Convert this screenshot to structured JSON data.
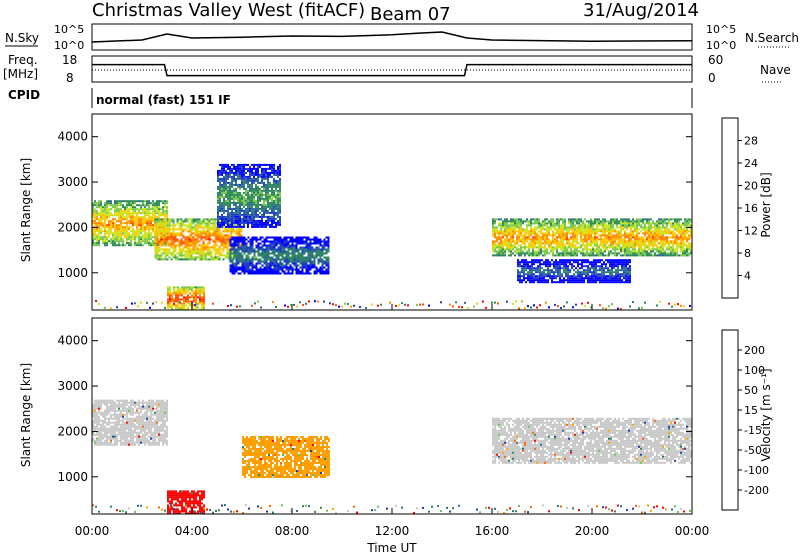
{
  "header": {
    "station": "Christmas Valley West (fitACF)",
    "beam": "Beam 07",
    "date": "31/Aug/2014"
  },
  "left_labels": {
    "nsky": "N.Sky",
    "freq": "Freq.",
    "freq_unit": "[MHz]",
    "cpid": "CPID"
  },
  "right_labels": {
    "nsearch": "N.Search",
    "nave": "Nave"
  },
  "mode_text": "normal (fast) 151 IF",
  "axis": {
    "xlabel": "Time UT",
    "ylabel": "Slant Range [km]",
    "x_ticks": [
      "00:00",
      "04:00",
      "08:00",
      "12:00",
      "16:00",
      "20:00",
      "00:00"
    ],
    "y_ticks": [
      "1000",
      "2000",
      "3000",
      "4000"
    ],
    "noise_ticks_left": [
      "10^5",
      "10^0"
    ],
    "noise_ticks_right": [
      "10^5",
      "10^0"
    ],
    "freq_ticks": [
      "18",
      "8"
    ],
    "nave_ticks": [
      "60",
      "0"
    ]
  },
  "colorbars": {
    "power": {
      "label": "Power [dB]",
      "ticks": [
        "28",
        "24",
        "20",
        "16",
        "12",
        "8",
        "4"
      ],
      "colors": [
        "#ff0000",
        "#ff4b00",
        "#ff8c00",
        "#ffc800",
        "#c8e61e",
        "#78c850",
        "#2e8b57",
        "#2e6e8b",
        "#1e3cc8",
        "#0000ff"
      ]
    },
    "velocity": {
      "label": "Velocity [m s⁻¹]",
      "ticks": [
        "200",
        "100",
        "50",
        "15",
        "-15",
        "-50",
        "-100",
        "-200"
      ],
      "colors": [
        "#1e3cb4",
        "#2e6e8b",
        "#2e8b57",
        "#64c850",
        "#c8c8c8",
        "#ffa000",
        "#ff6400",
        "#ff0000"
      ]
    }
  },
  "chart_data": [
    {
      "type": "heatmap",
      "title": "Power",
      "xlabel": "Time UT",
      "ylabel": "Slant Range [km]",
      "xlim": [
        0,
        24
      ],
      "ylim": [
        180,
        4500
      ],
      "colorbar_range_db": [
        0,
        30
      ],
      "features": [
        {
          "t_start": 0.0,
          "t_end": 3.0,
          "range_start_km": 1600,
          "range_end_km": 2600,
          "power_db": 24
        },
        {
          "t_start": 2.5,
          "t_end": 6.0,
          "range_start_km": 1300,
          "range_end_km": 2200,
          "power_db": 26
        },
        {
          "t_start": 5.0,
          "t_end": 7.5,
          "range_start_km": 2000,
          "range_end_km": 3400,
          "power_db": 14
        },
        {
          "t_start": 5.5,
          "t_end": 9.5,
          "range_start_km": 1000,
          "range_end_km": 1800,
          "power_db": 12
        },
        {
          "t_start": 3.0,
          "t_end": 4.5,
          "range_start_km": 200,
          "range_end_km": 700,
          "power_db": 28
        },
        {
          "t_start": 16.0,
          "t_end": 24.0,
          "range_start_km": 1400,
          "range_end_km": 2200,
          "power_db": 24
        },
        {
          "t_start": 17.0,
          "t_end": 21.5,
          "range_start_km": 800,
          "range_end_km": 1300,
          "power_db": 10
        }
      ]
    },
    {
      "type": "heatmap",
      "title": "Velocity",
      "xlabel": "Time UT",
      "ylabel": "Slant Range [km]",
      "xlim": [
        0,
        24
      ],
      "ylim": [
        180,
        4500
      ],
      "colorbar_range_ms": [
        -200,
        200
      ],
      "features": [
        {
          "t_start": 0.0,
          "t_end": 3.0,
          "range_start_km": 1700,
          "range_end_km": 2700,
          "velocity_ms": 0
        },
        {
          "t_start": 6.0,
          "t_end": 9.5,
          "range_start_km": 1000,
          "range_end_km": 1900,
          "velocity_ms": -60
        },
        {
          "t_start": 3.0,
          "t_end": 4.5,
          "range_start_km": 200,
          "range_end_km": 700,
          "velocity_ms": -200
        },
        {
          "t_start": 16.0,
          "t_end": 24.0,
          "range_start_km": 1300,
          "range_end_km": 2300,
          "velocity_ms": 0
        }
      ]
    },
    {
      "type": "line",
      "title": "N.Sky",
      "series": [
        {
          "name": "N.Sky",
          "x": [
            0,
            2,
            3,
            4,
            6,
            8,
            10,
            12,
            13,
            14,
            15,
            16,
            20,
            24
          ],
          "y": [
            1,
            1.5,
            3,
            2,
            2.2,
            2.5,
            2.4,
            2.8,
            3.2,
            3.5,
            2,
            1.5,
            1.2,
            1.3
          ]
        }
      ],
      "ylim": [
        0,
        5
      ]
    },
    {
      "type": "line",
      "title": "Freq.",
      "series": [
        {
          "name": "Freq.",
          "x": [
            0,
            2.9,
            3.0,
            14.9,
            15.0,
            24
          ],
          "y": [
            15,
            15,
            10,
            10,
            15,
            15
          ]
        }
      ],
      "ylim": [
        8,
        18
      ]
    }
  ]
}
